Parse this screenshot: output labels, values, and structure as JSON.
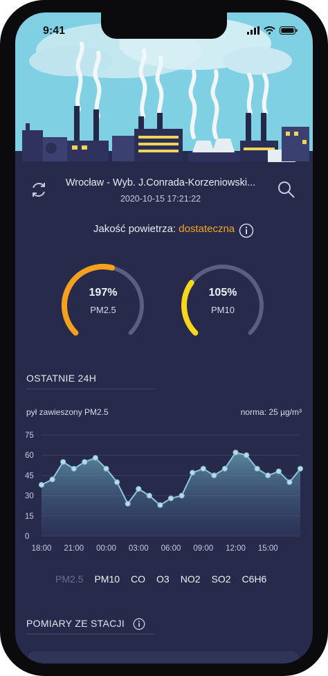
{
  "status": {
    "time": "9:41"
  },
  "station": {
    "name": "Wrocław - Wyb. J.Conrada-Korzeniowski...",
    "date": "2020-10-15 17:21:22"
  },
  "quality": {
    "label": "Jakość powietrza: ",
    "value": "dostateczna"
  },
  "gauges": [
    {
      "percent": "197%",
      "name": "PM2.5",
      "color": "#f5a11f",
      "fill": 0.55
    },
    {
      "percent": "105%",
      "name": "PM10",
      "color": "#f6d71c",
      "fill": 0.3
    }
  ],
  "last24": {
    "title": "OSTATNIE 24H",
    "pollutant_label": "pył zawieszony PM2.5",
    "norm_label": "norma: 25 µg/m³"
  },
  "chart_data": {
    "type": "area",
    "series": [
      {
        "values": [
          38,
          42,
          55,
          50,
          55,
          58,
          50,
          40,
          24,
          35,
          30,
          23,
          28,
          30,
          47,
          50,
          45,
          50,
          62,
          60,
          50,
          45,
          48,
          40,
          50
        ]
      }
    ],
    "y_ticks": [
      "75",
      "60",
      "45",
      "30",
      "15",
      "0"
    ],
    "x_ticks": [
      "18:00",
      "21:00",
      "00:00",
      "03:00",
      "06:00",
      "09:00",
      "12:00",
      "15:00"
    ],
    "ylim": [
      0,
      75
    ],
    "line_color": "#8fc7d8"
  },
  "tabs": [
    "PM2.5",
    "PM10",
    "CO",
    "O3",
    "NO2",
    "SO2",
    "C6H6"
  ],
  "measurements": {
    "title": "POMIARY ZE STACJI"
  },
  "colors": {
    "background": "#272a4b",
    "sky": "#7fd0e2",
    "accent": "#f5a623"
  }
}
